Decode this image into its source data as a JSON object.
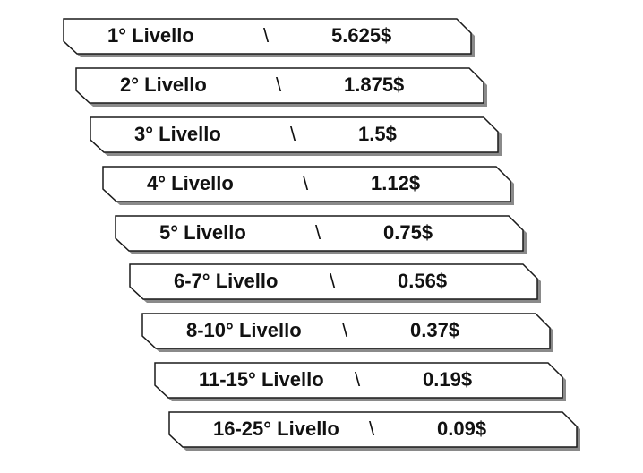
{
  "levels": [
    {
      "label": "1° Livello",
      "separator": "\\",
      "amount": "5.625$"
    },
    {
      "label": "2° Livello",
      "separator": "\\",
      "amount": "1.875$"
    },
    {
      "label": "3° Livello",
      "separator": "\\",
      "amount": "1.5$"
    },
    {
      "label": "4° Livello",
      "separator": "\\",
      "amount": "1.12$"
    },
    {
      "label": "5° Livello",
      "separator": "\\",
      "amount": "0.75$"
    },
    {
      "label": "6-7° Livello",
      "separator": "\\",
      "amount": "0.56$"
    },
    {
      "label": "8-10° Livello",
      "separator": "\\",
      "amount": "0.37$"
    },
    {
      "label": "11-15° Livello",
      "separator": "\\",
      "amount": "0.19$"
    },
    {
      "label": "16-25° Livello",
      "separator": "\\",
      "amount": "0.09$"
    }
  ],
  "colors": {
    "plate_fill": "#ffffff",
    "plate_stroke": "#1a1a1a",
    "shadow": "#8a8a8a",
    "text": "#111111"
  }
}
